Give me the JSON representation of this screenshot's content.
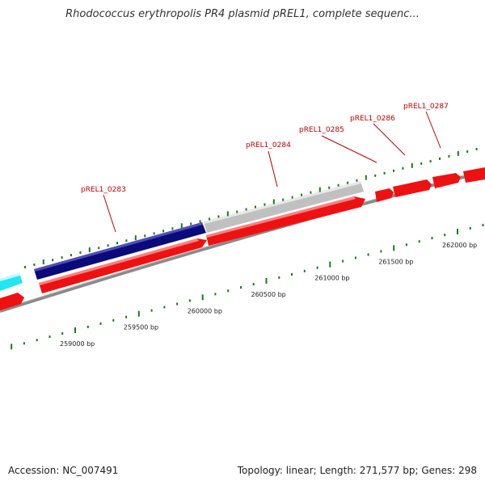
{
  "title": "Rhodococcus erythropolis PR4 plasmid pREL1, complete sequenc...",
  "footer": {
    "accession": "Accession: NC_007491",
    "summary": "Topology: linear; Length: 271,577 bp; Genes: 298"
  },
  "colors": {
    "cds": "#ee1111",
    "selected": "#0a0a7a",
    "gray_block": "#c0c0c0",
    "cyan_block": "#22e6f0",
    "tick": "#1a7a1a",
    "backbone": "#8a8a8a",
    "label_line": "#c00000"
  },
  "scale": {
    "unit": "bp",
    "labels": [
      {
        "bp": 259000,
        "text": "259000 bp"
      },
      {
        "bp": 259500,
        "text": "259500 bp"
      },
      {
        "bp": 260000,
        "text": "260000 bp"
      },
      {
        "bp": 260500,
        "text": "260500 bp"
      },
      {
        "bp": 261000,
        "text": "261000 bp"
      },
      {
        "bp": 261500,
        "text": "261500 bp"
      },
      {
        "bp": 262000,
        "text": "262000 bp"
      }
    ]
  },
  "genes": [
    {
      "id": "pREL1_0283",
      "label": "pREL1_0283"
    },
    {
      "id": "pREL1_0284",
      "label": "pREL1_0284"
    },
    {
      "id": "pREL1_0285",
      "label": "pREL1_0285"
    },
    {
      "id": "pREL1_0286",
      "label": "pREL1_0286"
    },
    {
      "id": "pREL1_0287",
      "label": "pREL1_0287"
    }
  ]
}
